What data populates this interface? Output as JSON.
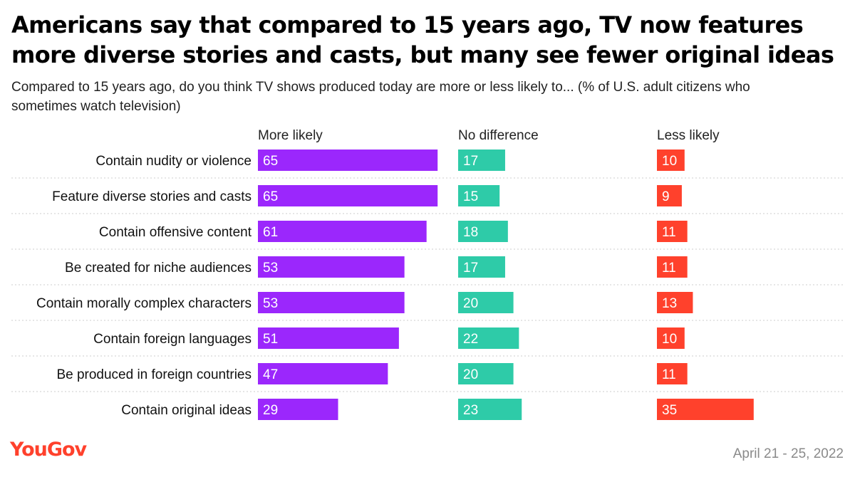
{
  "title_lines": [
    "Americans say that compared to 15 years ago, TV now features",
    "more diverse stories and casts, but many see fewer original ideas"
  ],
  "subtitle_lines": [
    "Compared to 15 years ago, do you think TV shows produced today are more or less likely to... (% of U.S. adult citizens who",
    "sometimes watch television)"
  ],
  "colors": {
    "more_likely": "#9b27fc",
    "no_difference": "#2ecba8",
    "less_likely": "#ff412c",
    "divider": "#cccccc",
    "logo": "#ff412c"
  },
  "chart_data": {
    "type": "bar",
    "orientation": "horizontal",
    "title": "Americans say that compared to 15 years ago, TV now features more diverse stories and casts, but many see fewer original ideas",
    "categories": [
      "Contain nudity or violence",
      "Feature diverse stories and casts",
      "Contain offensive content",
      "Be created for niche audiences",
      "Contain morally complex characters",
      "Contain foreign languages",
      "Be produced in foreign countries",
      "Contain original ideas"
    ],
    "series": [
      {
        "name": "More likely",
        "values": [
          65,
          65,
          61,
          53,
          53,
          51,
          47,
          29
        ]
      },
      {
        "name": "No difference",
        "values": [
          17,
          15,
          18,
          17,
          20,
          22,
          20,
          23
        ]
      },
      {
        "name": "Less likely",
        "values": [
          10,
          9,
          11,
          11,
          13,
          10,
          11,
          35
        ]
      }
    ],
    "unit": "%"
  },
  "footer": {
    "logo_text": "YouGov",
    "date": "April 21 - 25, 2022"
  }
}
